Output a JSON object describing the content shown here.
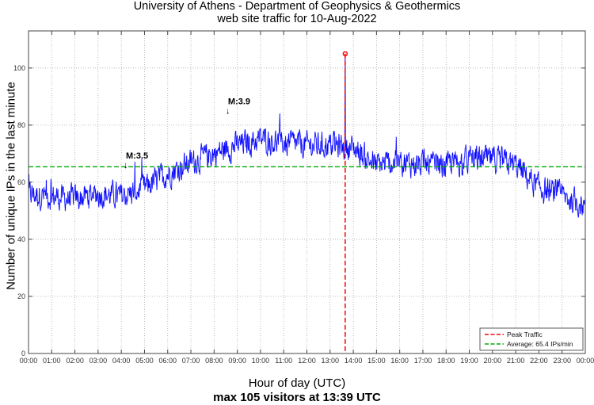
{
  "chart_data": {
    "type": "line",
    "title": "University of Athens - Department of Geophysics & Geothermics",
    "subtitle": "web site traffic for 10-Aug-2022",
    "xlabel": "Hour of day (UTC)",
    "footer": "max 105 visitors at 13:39 UTC",
    "ylabel": "Number of unique IPs in the last minute",
    "x_unit": "hours",
    "xlim": [
      0,
      24
    ],
    "ylim": [
      0,
      113
    ],
    "grid": true,
    "x_ticks": [
      "00:00",
      "01:00",
      "02:00",
      "03:00",
      "04:00",
      "05:00",
      "06:00",
      "07:00",
      "08:00",
      "09:00",
      "10:00",
      "11:00",
      "12:00",
      "13:00",
      "14:00",
      "15:00",
      "16:00",
      "17:00",
      "18:00",
      "19:00",
      "20:00",
      "21:00",
      "22:00",
      "23:00",
      "00:00"
    ],
    "y_ticks": [
      0,
      20,
      40,
      60,
      80,
      100
    ],
    "series": [
      {
        "name": "traffic",
        "color": "#0000ff",
        "baseline_hours": [
          0,
          1,
          2,
          3,
          4,
          5,
          6,
          7,
          8,
          9,
          10,
          11,
          12,
          13,
          14,
          15,
          16,
          17,
          18,
          19,
          20,
          21,
          22,
          23,
          24
        ],
        "baseline_values": [
          56,
          55,
          54,
          56,
          55,
          58,
          63,
          67,
          70,
          73,
          75,
          74,
          73,
          73,
          72,
          66,
          67,
          66,
          66,
          68,
          68,
          66,
          58,
          55,
          52
        ],
        "noise_amplitude": 7
      }
    ],
    "peak": {
      "label": "Peak Traffic",
      "hour": 13.65,
      "value": 105,
      "color": "#ff0000"
    },
    "average": {
      "label": "Average: 65.4 IPs/min",
      "value": 65.4,
      "color": "#00aa00"
    },
    "annotations": [
      {
        "text": "M:3.5",
        "hour": 4.2,
        "value": 65
      },
      {
        "text": "M:3.9",
        "hour": 8.6,
        "value": 84
      }
    ],
    "legend_position": "bottom-right"
  }
}
